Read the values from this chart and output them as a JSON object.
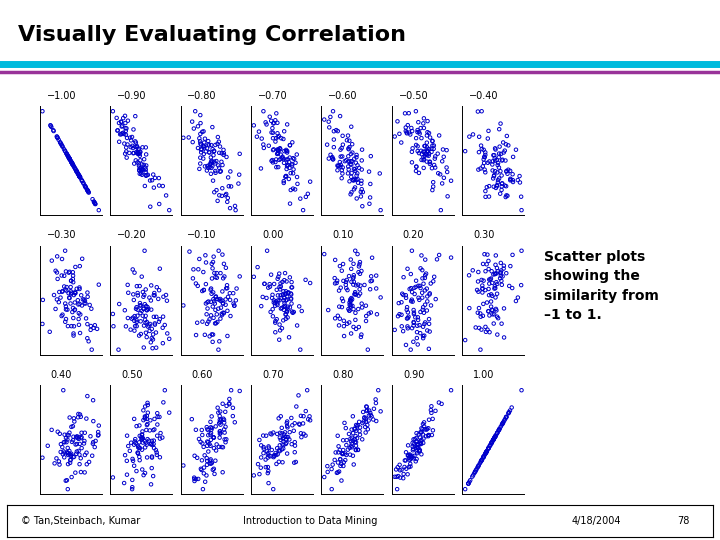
{
  "title": "Visually Evaluating Correlation",
  "title_fontsize": 16,
  "title_fontweight": "bold",
  "correlations_row1": [
    -1.0,
    -0.9,
    -0.8,
    -0.7,
    -0.6,
    -0.5,
    -0.4
  ],
  "correlations_row2": [
    -0.3,
    -0.2,
    -0.1,
    0.0,
    0.1,
    0.2,
    0.3
  ],
  "correlations_row3": [
    0.4,
    0.5,
    0.6,
    0.7,
    0.8,
    0.9,
    1.0
  ],
  "n_points": 100,
  "scatter_color": "#0000CC",
  "scatter_markersize": 2.5,
  "scatter_linewidth": 0.7,
  "background_color": "#FFFFFF",
  "line1_color": "#00BBDD",
  "line2_color": "#993399",
  "footer_text_left": "© Tan,Steinbach, Kumar",
  "footer_text_center": "Introduction to Data Mining",
  "footer_text_right": "4/18/2004",
  "footer_page": "78",
  "annotation_text": "Scatter plots\nshowing the\nsimilarity from\n–1 to 1.",
  "annotation_fontsize": 10,
  "annotation_fontweight": "bold",
  "label_fontsize": 7,
  "footer_fontsize": 7
}
